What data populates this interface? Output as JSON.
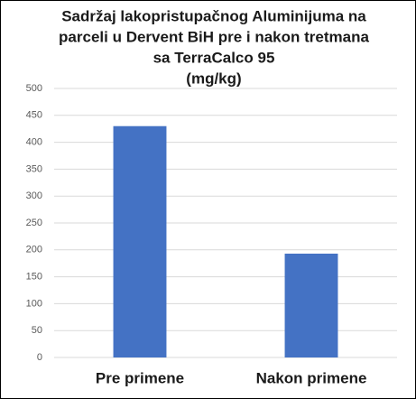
{
  "chart_data": {
    "type": "bar",
    "title": [
      "Sadržaj lakopristupačnog Aluminijuma na",
      "parceli u Dervent BiH pre i nakon tretmana",
      "sa  TerraCalco  95",
      "(mg/kg)"
    ],
    "categories": [
      "Pre primene",
      "Nakon primene"
    ],
    "values": [
      430,
      193
    ],
    "color": "#4472c4",
    "ylim": [
      0,
      500
    ],
    "yticks": [
      0,
      50,
      100,
      150,
      200,
      250,
      300,
      350,
      400,
      450,
      500
    ],
    "grid": true
  }
}
